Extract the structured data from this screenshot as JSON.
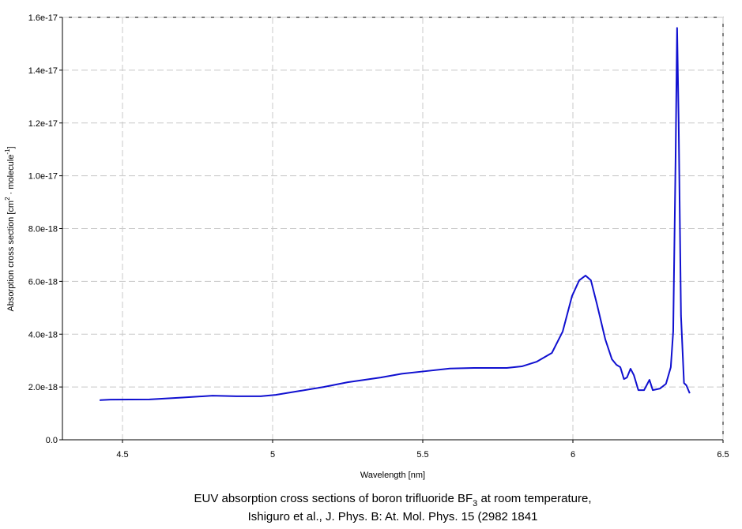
{
  "chart_data": {
    "type": "line",
    "title_parts": [
      "EUV absorption cross sections of boron trifluoride BF",
      "3",
      " at room temperature,"
    ],
    "subtitle": "Ishiguro et al., J. Phys. B: At. Mol. Phys. 15 (2982 1841",
    "x_label": "Wavelength [nm]",
    "y_label_parts": [
      "Absorption cross section [cm",
      "2",
      " · molecule",
      "-1",
      "]"
    ],
    "xlim": [
      4.3,
      6.5
    ],
    "xticks": [
      4.5,
      5.0,
      5.5,
      6.0,
      6.5
    ],
    "ylim": [
      0,
      1.6e-17
    ],
    "yticks": [
      {
        "value": 0,
        "label": "0.0"
      },
      {
        "value": 2e-18,
        "label": "2.0e-18"
      },
      {
        "value": 4e-18,
        "label": "4.0e-18"
      },
      {
        "value": 6e-18,
        "label": "6.0e-18"
      },
      {
        "value": 8e-18,
        "label": "8.0e-18"
      },
      {
        "value": 1e-17,
        "label": "1.0e-17"
      },
      {
        "value": 1.2e-17,
        "label": "1.2e-17"
      },
      {
        "value": 1.4e-17,
        "label": "1.4e-17"
      },
      {
        "value": 1.6e-17,
        "label": "1.6e-17"
      }
    ],
    "grid": true,
    "series": [
      {
        "color": "#1010d0",
        "x": [
          4.424,
          4.46,
          4.59,
          4.7,
          4.8,
          4.88,
          4.96,
          5.01,
          5.09,
          5.17,
          5.25,
          5.36,
          5.43,
          5.51,
          5.59,
          5.67,
          5.78,
          5.83,
          5.88,
          5.93,
          5.966,
          5.997,
          6.021,
          6.042,
          6.06,
          6.08,
          6.108,
          6.13,
          6.145,
          6.158,
          6.17,
          6.18,
          6.192,
          6.203,
          6.218,
          6.237,
          6.255,
          6.266,
          6.29,
          6.31,
          6.326,
          6.334,
          6.342,
          6.347,
          6.352,
          6.36,
          6.37,
          6.378,
          6.389
        ],
        "values": [
          1.5e-18,
          1.52e-18,
          1.53e-18,
          1.6e-18,
          1.67e-18,
          1.65e-18,
          1.65e-18,
          1.7e-18,
          1.85e-18,
          2e-18,
          2.18e-18,
          2.36e-18,
          2.5e-18,
          2.6e-18,
          2.7e-18,
          2.72e-18,
          2.72e-18,
          2.78e-18,
          2.96e-18,
          3.29e-18,
          4.1e-18,
          5.44e-18,
          6.04e-18,
          6.22e-18,
          6.04e-18,
          5.14e-18,
          3.8e-18,
          3.05e-18,
          2.84e-18,
          2.75e-18,
          2.3e-18,
          2.36e-18,
          2.69e-18,
          2.45e-18,
          1.88e-18,
          1.88e-18,
          2.27e-18,
          1.88e-18,
          1.94e-18,
          2.12e-18,
          2.75e-18,
          4.1e-18,
          1.067e-17,
          1.56e-17,
          1.22e-17,
          4.7e-18,
          2.15e-18,
          2.06e-18,
          1.76e-18
        ]
      }
    ]
  }
}
